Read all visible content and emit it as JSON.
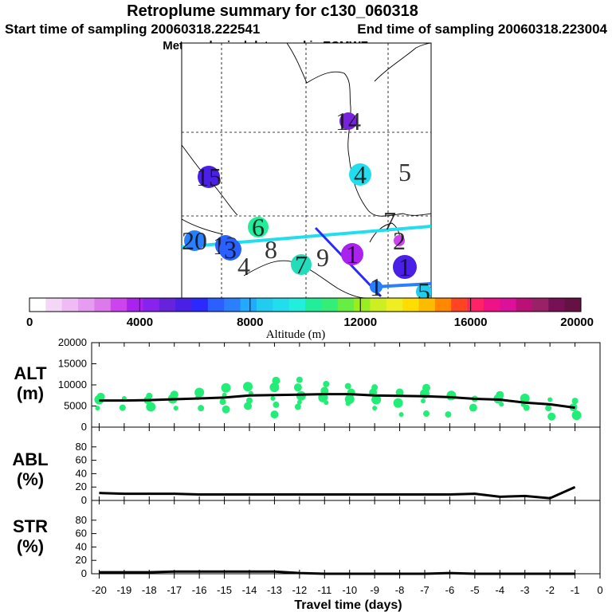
{
  "header": {
    "title": "Retroplume summary for c130_060318",
    "start_label": "Start time of sampling 20060318.222541",
    "end_label": "End time of sampling 20060318.223004",
    "met_label": "Meteorological data used is ECMWF"
  },
  "map": {
    "labels": [
      {
        "text": "14",
        "color": "#7722dd",
        "dot": true
      },
      {
        "text": "15",
        "color": "#4a1fe6",
        "dot": true
      },
      {
        "text": "4",
        "color": "#22ddee",
        "dot": true
      },
      {
        "text": "5",
        "color": "#22ddee",
        "dot": false
      },
      {
        "text": "6",
        "color": "#22ee99",
        "dot": true
      },
      {
        "text": "20",
        "color": "#2a7fff",
        "dot": true
      },
      {
        "text": "12",
        "color": "#2a60ff",
        "dot": true
      },
      {
        "text": "8",
        "color": "#22ee99",
        "dot": false
      },
      {
        "text": "3",
        "color": "#2a60ff",
        "dot": true
      },
      {
        "text": "4",
        "color": "#2a60ff",
        "dot": false
      },
      {
        "text": "7",
        "color": "#22ddbb",
        "dot": true
      },
      {
        "text": "9",
        "color": "#22ddbb",
        "dot": false
      },
      {
        "text": "1",
        "color": "#aa22ee",
        "dot": true
      },
      {
        "text": "1",
        "color": "#4a1fe6",
        "dot": true
      },
      {
        "text": "7",
        "color": "#cc44ee",
        "dot": false
      },
      {
        "text": "2",
        "color": "#cc44ee",
        "dot": true
      },
      {
        "text": "1",
        "color": "#2a7fff",
        "dot": true
      },
      {
        "text": "5",
        "color": "#22ccee",
        "dot": true
      }
    ]
  },
  "colorbar": {
    "colors": [
      "#ffffff",
      "#f4d6f7",
      "#eebbf4",
      "#e69cf0",
      "#dd7aeb",
      "#cc44ee",
      "#aa22ee",
      "#8822ee",
      "#6622dd",
      "#4a1fe6",
      "#2a2aff",
      "#2a60ff",
      "#2a7fff",
      "#22aaff",
      "#22ccee",
      "#22ddee",
      "#22eedd",
      "#22ee99",
      "#33ee77",
      "#66ee44",
      "#99ee22",
      "#ccee22",
      "#eeee22",
      "#ffdd00",
      "#ffbb00",
      "#ff8800",
      "#ff4422",
      "#ff2266",
      "#ee1188",
      "#dd1199",
      "#bb1177",
      "#992266",
      "#771155",
      "#661144"
    ],
    "ticks": [
      "0",
      "4000",
      "8000",
      "12000",
      "16000",
      "20000"
    ],
    "label": "Altitude (m)"
  },
  "panels": {
    "alt": {
      "label_line1": "ALT",
      "label_line2": "(m)",
      "yticks": [
        "20000",
        "15000",
        "10000",
        "5000",
        "0"
      ]
    },
    "abl": {
      "label_line1": "ABL",
      "label_line2": "(%)",
      "yticks": [
        "80",
        "60",
        "40",
        "20",
        "0"
      ]
    },
    "str": {
      "label_line1": "STR",
      "label_line2": "(%)",
      "yticks": [
        "80",
        "60",
        "40",
        "20",
        "0"
      ]
    }
  },
  "xaxis": {
    "ticks": [
      "-20",
      "-19",
      "-18",
      "-17",
      "-16",
      "-15",
      "-14",
      "-13",
      "-12",
      "-11",
      "-10",
      "-9",
      "-8",
      "-7",
      "-6",
      "-5",
      "-4",
      "-3",
      "-2",
      "-1",
      "0"
    ],
    "label": "Travel time (days)"
  },
  "chart_data": [
    {
      "type": "line",
      "title": "ALT (m)",
      "xlabel": "Travel time (days)",
      "ylabel": "ALT (m)",
      "ylim": [
        0,
        20000
      ],
      "xlim": [
        -20,
        0
      ],
      "series": [
        {
          "name": "mean altitude",
          "x": [
            -20,
            -19,
            -18,
            -17,
            -16,
            -15,
            -14,
            -13,
            -12,
            -11,
            -10,
            -9,
            -8,
            -7,
            -6,
            -5,
            -4,
            -3,
            -2,
            -1
          ],
          "values": [
            6300,
            6300,
            6400,
            6600,
            6800,
            7000,
            7500,
            7600,
            7700,
            7800,
            7800,
            7500,
            7400,
            7300,
            7100,
            6700,
            6500,
            5800,
            5400,
            4600
          ]
        },
        {
          "name": "plume clusters",
          "x": [
            -20,
            -20,
            -20,
            -19,
            -19,
            -18,
            -18,
            -18,
            -17,
            -17,
            -17,
            -16,
            -16,
            -16,
            -15,
            -15,
            -15,
            -15,
            -14,
            -14,
            -14,
            -14,
            -13,
            -13,
            -13,
            -13,
            -13,
            -12,
            -12,
            -12,
            -12,
            -12,
            -11,
            -11,
            -11,
            -11,
            -10,
            -10,
            -10,
            -10,
            -9,
            -9,
            -9,
            -9,
            -8,
            -8,
            -8,
            -7,
            -7,
            -7,
            -7,
            -6,
            -6,
            -6,
            -5,
            -5,
            -4,
            -4,
            -4,
            -3,
            -3,
            -3,
            -2,
            -2,
            -2,
            -1,
            -1,
            -1
          ],
          "values": [
            4500,
            6500,
            7200,
            4600,
            6800,
            4800,
            6400,
            7400,
            4500,
            6700,
            7700,
            4500,
            7000,
            8200,
            4200,
            6000,
            7600,
            9300,
            5000,
            6300,
            8000,
            9600,
            3000,
            5300,
            6800,
            9400,
            11000,
            4800,
            5900,
            7400,
            9400,
            11200,
            5800,
            7000,
            8600,
            10200,
            5600,
            6600,
            8200,
            9700,
            4500,
            6500,
            8200,
            9400,
            3000,
            5700,
            8200,
            3200,
            6200,
            7900,
            9300,
            3000,
            6900,
            7500,
            4600,
            6700,
            5400,
            6700,
            7600,
            4600,
            5300,
            6800,
            2500,
            4500,
            6500,
            2800,
            4700,
            6200
          ]
        }
      ]
    },
    {
      "type": "line",
      "title": "ABL (%)",
      "xlabel": "Travel time (days)",
      "ylabel": "ABL (%)",
      "ylim": [
        0,
        100
      ],
      "xlim": [
        -20,
        0
      ],
      "series": [
        {
          "name": "ABL",
          "x": [
            -20,
            -19,
            -18,
            -17,
            -16,
            -15,
            -14,
            -13,
            -12,
            -11,
            -10,
            -9,
            -8,
            -7,
            -6,
            -5,
            -4,
            -3,
            -2,
            -1
          ],
          "values": [
            10,
            9,
            9,
            9,
            8,
            8,
            8,
            8,
            8,
            8,
            8,
            8,
            8,
            8,
            8,
            9,
            5,
            6,
            3,
            18
          ]
        }
      ]
    },
    {
      "type": "line",
      "title": "STR (%)",
      "xlabel": "Travel time (days)",
      "ylabel": "STR (%)",
      "ylim": [
        0,
        100
      ],
      "xlim": [
        -20,
        0
      ],
      "series": [
        {
          "name": "STR",
          "x": [
            -20,
            -19,
            -18,
            -17,
            -16,
            -15,
            -14,
            -13,
            -12,
            -11,
            -10,
            -9,
            -8,
            -7,
            -6,
            -5,
            -4,
            -3,
            -2,
            -1
          ],
          "values": [
            2,
            2,
            2,
            3,
            3,
            3,
            3,
            3,
            1,
            0,
            0,
            0,
            0,
            0,
            1,
            0,
            0,
            0,
            0,
            0
          ]
        }
      ]
    }
  ]
}
